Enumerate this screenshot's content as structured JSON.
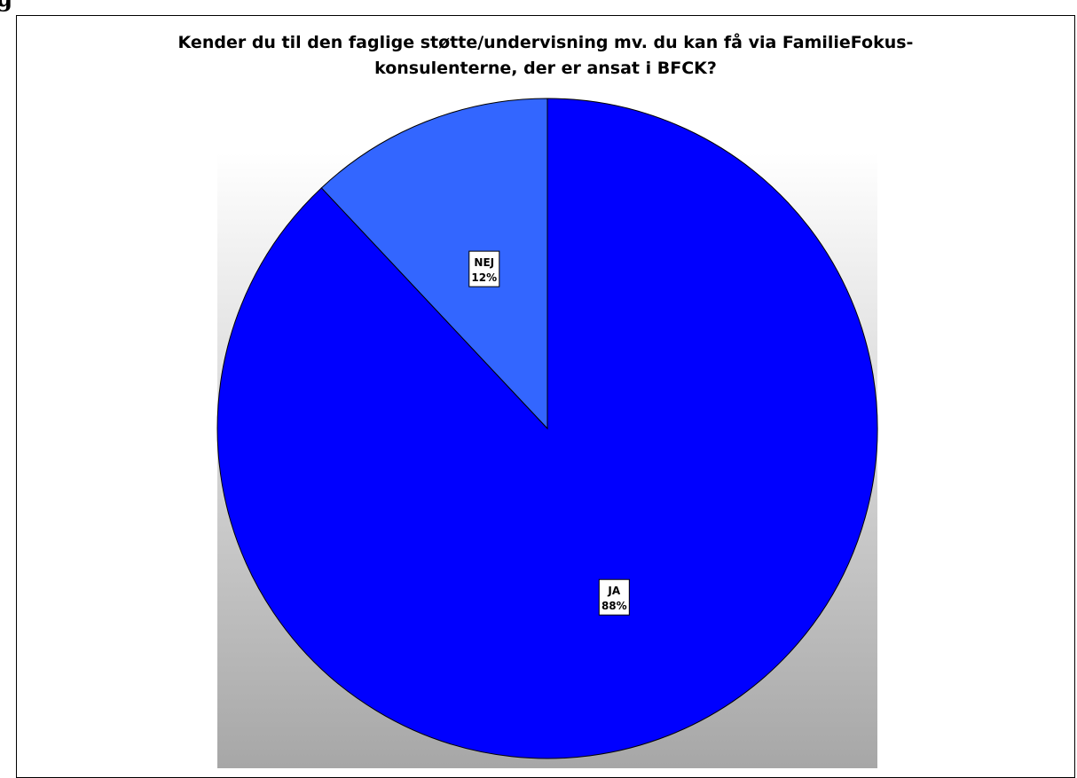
{
  "page": {
    "fragment_text": "g"
  },
  "chart_data": {
    "type": "pie",
    "title": "Kender du til den faglige støtte/undervisning mv. du kan få via FamilieFokus-konsulenterne, der er ansat i BFCK?",
    "title_lines": [
      "Kender du til den faglige støtte/undervisning mv. du kan få via FamilieFokus-",
      "konsulenterne, der er ansat i BFCK?"
    ],
    "categories": [
      "JA",
      "NEJ"
    ],
    "values": [
      88,
      12
    ],
    "data_labels": [
      "88%",
      "12%"
    ],
    "colors": [
      "#0000ff",
      "#3366ff"
    ],
    "start": "top, clockwise",
    "legend": "none"
  }
}
